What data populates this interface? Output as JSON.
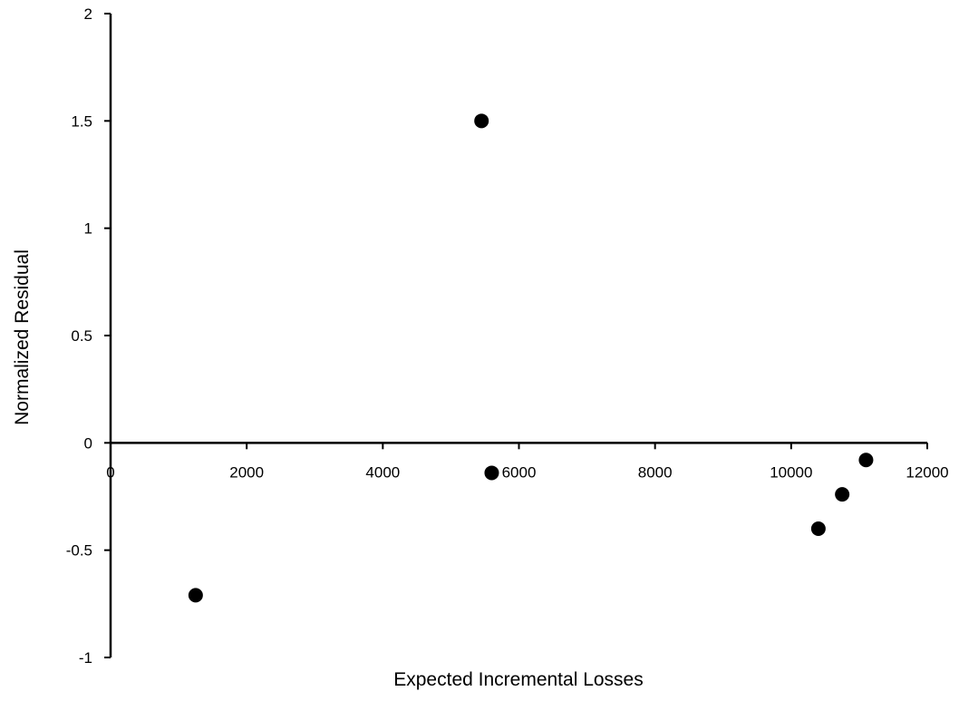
{
  "chart_data": {
    "type": "scatter",
    "title": "",
    "xlabel": "Expected Incremental Losses",
    "ylabel": "Normalized Residual",
    "xlim": [
      0,
      12000
    ],
    "ylim": [
      -1,
      2
    ],
    "x_ticks": [
      0,
      2000,
      4000,
      6000,
      8000,
      10000,
      12000
    ],
    "y_ticks": [
      -1,
      -0.5,
      0,
      0.5,
      1,
      1.5,
      2
    ],
    "x_tick_labels": [
      "0",
      "2000",
      "4000",
      "6000",
      "8000",
      "10000",
      "12000"
    ],
    "y_tick_labels": [
      "-1",
      "-0.5",
      "0",
      "0.5",
      "1",
      "1.5",
      "2"
    ],
    "grid": false,
    "legend": "none",
    "marker_color": "#000000",
    "series": [
      {
        "x": [
          1250,
          5450,
          5600,
          10400,
          10750,
          11100
        ],
        "y": [
          -0.71,
          1.5,
          -0.14,
          -0.4,
          -0.24,
          -0.08
        ]
      }
    ]
  }
}
